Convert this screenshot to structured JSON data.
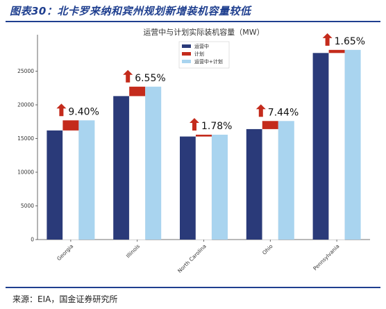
{
  "figure_title": "图表30：北卡罗来纳和宾州规划新增装机容量较低",
  "source": "来源：EIA，国金证券研究所",
  "colors": {
    "current": "#2a3a79",
    "planned": "#c42b1c",
    "total": "#a9d4ef",
    "arrow": "#c42b1c",
    "rule": "#1f3f8f"
  },
  "chart_data": {
    "type": "bar",
    "title": "运营中与计划实际装机容量（MW）",
    "categories": [
      "Georgia",
      "Illinois",
      "North Carolina",
      "Ohio",
      "Pennsylvania"
    ],
    "series": [
      {
        "name": "运营中",
        "values": [
          16200,
          21300,
          15300,
          16400,
          27700
        ]
      },
      {
        "name": "计划",
        "values": [
          1500,
          1400,
          270,
          1200,
          460
        ]
      },
      {
        "name": "运营中+计划",
        "values": [
          17700,
          22700,
          15570,
          17600,
          28160
        ]
      }
    ],
    "growth_labels": [
      "9.40%",
      "6.55%",
      "1.78%",
      "7.44%",
      "1.65%"
    ],
    "ylim": [
      0,
      30000
    ],
    "yticks": [
      0,
      5000,
      10000,
      15000,
      20000,
      25000
    ],
    "legend_position": "top-center",
    "grid": false
  }
}
